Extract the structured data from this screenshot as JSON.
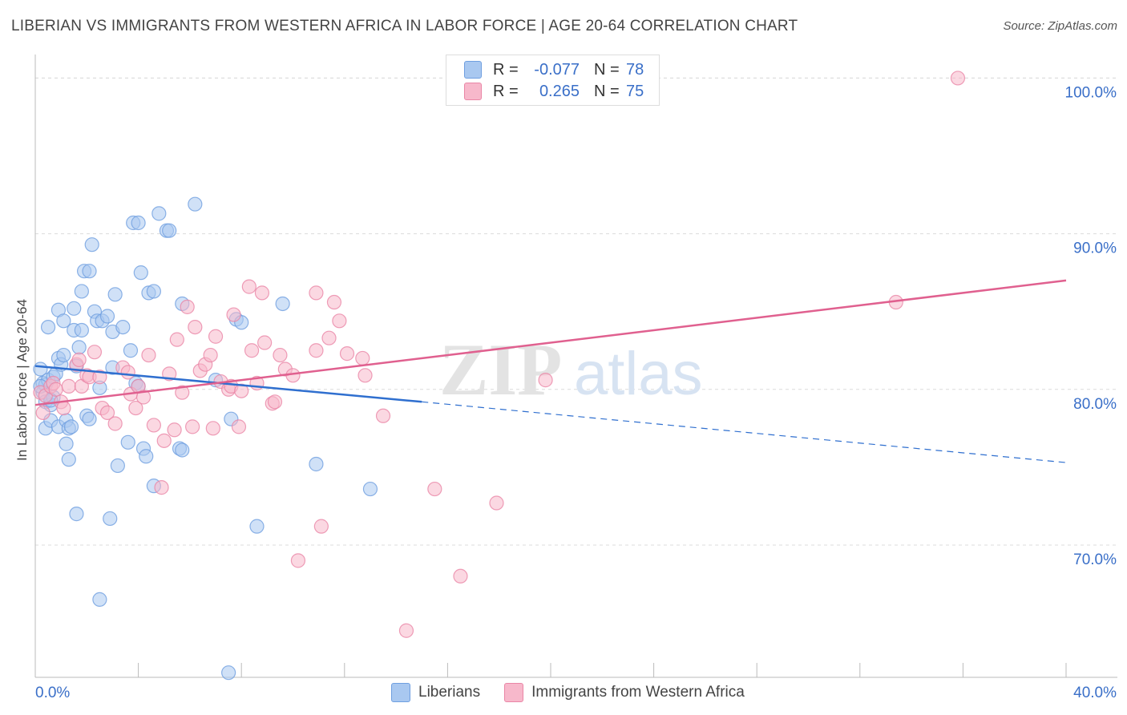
{
  "title": "LIBERIAN VS IMMIGRANTS FROM WESTERN AFRICA IN LABOR FORCE | AGE 20-64 CORRELATION CHART",
  "source": "Source: ZipAtlas.com",
  "stats": {
    "r_label": "R =",
    "n_label": "N =",
    "rows": [
      {
        "r": "-0.077",
        "n": "78",
        "color": "#a9c8f0"
      },
      {
        "r": "0.265",
        "n": "75",
        "color": "#f7b8cb"
      }
    ]
  },
  "legend": [
    {
      "label": "Liberians",
      "color": "#a9c8f0"
    },
    {
      "label": "Immigrants from Western Africa",
      "color": "#f7b8cb"
    }
  ],
  "watermark": {
    "zip": "ZIP",
    "atlas": "atlas"
  },
  "chart_data": {
    "type": "scatter",
    "title": "LIBERIAN VS IMMIGRANTS FROM WESTERN AFRICA IN LABOR FORCE | AGE 20-64 CORRELATION CHART",
    "xlabel": "",
    "ylabel": "In Labor Force | Age 20-64",
    "xlim": [
      0,
      40
    ],
    "ylim": [
      61.5,
      101
    ],
    "x_tick_labels": [
      "0.0%",
      "40.0%"
    ],
    "y_ticks": [
      70,
      80,
      90,
      100
    ],
    "y_tick_labels": [
      "70.0%",
      "80.0%",
      "90.0%",
      "100.0%"
    ],
    "grid": true,
    "series": [
      {
        "name": "Liberians",
        "color": "#6f9fe0",
        "fill": "#a9c8f0",
        "trend": {
          "x0": 0,
          "y0": 81.5,
          "x1": 15,
          "y1": 79.2,
          "dash_to_x": 40,
          "dash_to_y": 75.3,
          "color": "#2f6fcf"
        },
        "points": [
          [
            0.2,
            81.3
          ],
          [
            0.3,
            80.4
          ],
          [
            0.3,
            79.8
          ],
          [
            0.4,
            80.3
          ],
          [
            0.4,
            79.2
          ],
          [
            0.4,
            77.5
          ],
          [
            0.5,
            84.0
          ],
          [
            0.5,
            80.6
          ],
          [
            0.6,
            79.0
          ],
          [
            0.6,
            78.0
          ],
          [
            0.7,
            80.8
          ],
          [
            0.7,
            79.5
          ],
          [
            0.8,
            81.0
          ],
          [
            0.9,
            77.6
          ],
          [
            0.9,
            82.0
          ],
          [
            0.9,
            85.1
          ],
          [
            1.0,
            81.6
          ],
          [
            1.1,
            82.2
          ],
          [
            1.1,
            84.4
          ],
          [
            1.2,
            76.5
          ],
          [
            1.2,
            78.0
          ],
          [
            1.3,
            77.5
          ],
          [
            1.3,
            75.5
          ],
          [
            1.4,
            77.6
          ],
          [
            1.5,
            85.2
          ],
          [
            1.5,
            83.8
          ],
          [
            1.6,
            81.5
          ],
          [
            1.6,
            72.0
          ],
          [
            1.7,
            82.7
          ],
          [
            1.8,
            86.3
          ],
          [
            1.8,
            83.8
          ],
          [
            1.9,
            87.6
          ],
          [
            2.0,
            78.3
          ],
          [
            2.1,
            78.1
          ],
          [
            2.1,
            87.6
          ],
          [
            2.2,
            89.3
          ],
          [
            2.3,
            85.0
          ],
          [
            2.4,
            84.4
          ],
          [
            2.5,
            80.1
          ],
          [
            2.5,
            66.5
          ],
          [
            2.6,
            84.4
          ],
          [
            2.8,
            84.7
          ],
          [
            2.9,
            71.7
          ],
          [
            3.0,
            81.4
          ],
          [
            3.0,
            83.7
          ],
          [
            3.1,
            86.1
          ],
          [
            3.2,
            75.1
          ],
          [
            3.4,
            84.0
          ],
          [
            3.6,
            76.6
          ],
          [
            3.7,
            82.5
          ],
          [
            3.8,
            90.7
          ],
          [
            3.9,
            80.4
          ],
          [
            4.0,
            80.2
          ],
          [
            4.0,
            90.7
          ],
          [
            4.1,
            87.5
          ],
          [
            4.2,
            76.2
          ],
          [
            4.3,
            75.7
          ],
          [
            4.4,
            86.2
          ],
          [
            4.6,
            86.3
          ],
          [
            4.6,
            73.8
          ],
          [
            4.8,
            91.3
          ],
          [
            5.1,
            90.2
          ],
          [
            5.2,
            90.2
          ],
          [
            5.6,
            76.2
          ],
          [
            5.7,
            76.1
          ],
          [
            5.7,
            85.5
          ],
          [
            6.2,
            91.9
          ],
          [
            7.0,
            80.6
          ],
          [
            7.5,
            61.8
          ],
          [
            7.6,
            78.1
          ],
          [
            7.8,
            84.5
          ],
          [
            8.0,
            84.3
          ],
          [
            8.6,
            71.2
          ],
          [
            9.6,
            85.5
          ],
          [
            10.9,
            75.2
          ],
          [
            13.0,
            73.6
          ],
          [
            0.6,
            79.3
          ],
          [
            0.2,
            80.2
          ]
        ]
      },
      {
        "name": "Immigrants from Western Africa",
        "color": "#ea86a6",
        "fill": "#f7b8cb",
        "trend": {
          "x0": 0,
          "y0": 79.0,
          "x1": 40,
          "y1": 87.0,
          "color": "#e0608f"
        },
        "points": [
          [
            0.2,
            79.8
          ],
          [
            0.3,
            78.5
          ],
          [
            0.4,
            79.6
          ],
          [
            0.6,
            80.2
          ],
          [
            0.7,
            80.4
          ],
          [
            0.8,
            80.0
          ],
          [
            1.0,
            79.2
          ],
          [
            1.1,
            78.8
          ],
          [
            1.3,
            80.2
          ],
          [
            1.6,
            81.6
          ],
          [
            1.7,
            81.9
          ],
          [
            1.8,
            80.2
          ],
          [
            2.0,
            80.9
          ],
          [
            2.1,
            80.8
          ],
          [
            2.3,
            82.4
          ],
          [
            2.5,
            80.8
          ],
          [
            2.6,
            78.8
          ],
          [
            2.8,
            78.5
          ],
          [
            3.1,
            77.8
          ],
          [
            3.4,
            81.4
          ],
          [
            3.6,
            81.1
          ],
          [
            3.7,
            79.7
          ],
          [
            3.9,
            78.8
          ],
          [
            4.0,
            80.2
          ],
          [
            4.2,
            79.5
          ],
          [
            4.4,
            82.2
          ],
          [
            4.6,
            77.7
          ],
          [
            4.9,
            73.7
          ],
          [
            5.0,
            76.7
          ],
          [
            5.2,
            81.0
          ],
          [
            5.4,
            77.4
          ],
          [
            5.5,
            83.2
          ],
          [
            5.7,
            79.8
          ],
          [
            5.9,
            85.3
          ],
          [
            6.1,
            77.6
          ],
          [
            6.2,
            84.0
          ],
          [
            6.4,
            81.2
          ],
          [
            6.6,
            81.6
          ],
          [
            6.8,
            82.2
          ],
          [
            6.9,
            77.5
          ],
          [
            7.0,
            83.4
          ],
          [
            7.2,
            80.5
          ],
          [
            7.5,
            80.0
          ],
          [
            7.6,
            80.2
          ],
          [
            7.7,
            84.8
          ],
          [
            7.9,
            77.6
          ],
          [
            8.0,
            79.9
          ],
          [
            8.3,
            86.6
          ],
          [
            8.4,
            82.5
          ],
          [
            8.6,
            80.4
          ],
          [
            8.8,
            86.2
          ],
          [
            8.9,
            83.0
          ],
          [
            9.2,
            79.1
          ],
          [
            9.3,
            79.2
          ],
          [
            9.5,
            82.2
          ],
          [
            9.7,
            81.3
          ],
          [
            10.0,
            80.9
          ],
          [
            10.2,
            69.0
          ],
          [
            10.9,
            86.2
          ],
          [
            10.9,
            82.5
          ],
          [
            11.1,
            71.2
          ],
          [
            11.4,
            83.3
          ],
          [
            11.6,
            85.6
          ],
          [
            11.8,
            84.4
          ],
          [
            12.1,
            82.3
          ],
          [
            12.7,
            82.0
          ],
          [
            12.8,
            80.9
          ],
          [
            13.5,
            78.3
          ],
          [
            14.4,
            64.5
          ],
          [
            15.5,
            73.6
          ],
          [
            16.5,
            68.0
          ],
          [
            17.9,
            72.7
          ],
          [
            19.8,
            80.6
          ],
          [
            33.4,
            85.6
          ],
          [
            35.8,
            100.0
          ]
        ]
      }
    ]
  }
}
